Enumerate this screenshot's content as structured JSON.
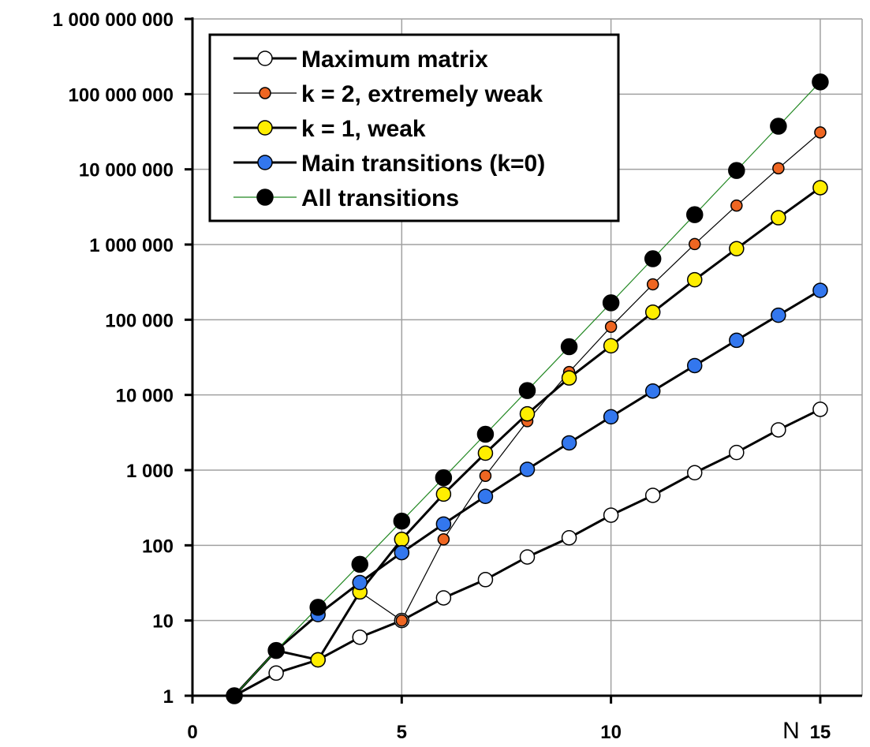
{
  "chart_data": {
    "type": "line",
    "xlabel": "N",
    "ylabel": "",
    "xlim": [
      0,
      16
    ],
    "ylim": [
      1,
      1000000000
    ],
    "yscale": "log",
    "grid": true,
    "legend_position": "top-left",
    "x_ticks": [
      "0",
      "5",
      "10",
      "15"
    ],
    "y_ticks": [
      "1",
      "10",
      "100",
      "1 000",
      "10 000",
      "100 000",
      "1 000 000",
      "10 000 000",
      "100 000 000",
      "1 000 000 000"
    ],
    "x_tick_values": [
      0,
      5,
      10,
      15
    ],
    "y_tick_values": [
      1,
      10,
      100,
      1000,
      10000,
      100000,
      1000000,
      10000000,
      100000000,
      1000000000
    ],
    "series": [
      {
        "name": "Maximum matrix",
        "marker_color": "#ffffff",
        "line_color": "#000000",
        "x": [
          1,
          2,
          3,
          4,
          5,
          6,
          7,
          8,
          9,
          10,
          11,
          12,
          13,
          14,
          15
        ],
        "values": [
          1,
          2,
          3,
          6,
          10,
          20,
          35,
          70,
          126,
          252,
          462,
          924,
          1716,
          3432,
          6435
        ]
      },
      {
        "name": "k = 2, extremely weak",
        "marker_color": "#ee6622",
        "line_color": "#000000",
        "x": [
          1,
          2,
          3,
          4,
          5,
          6,
          7,
          8,
          9,
          10,
          11,
          12,
          13,
          14,
          15
        ],
        "values": [
          1,
          4,
          3,
          24,
          10,
          120,
          840,
          4480,
          20160,
          80640,
          295680,
          1013760,
          3294720,
          10321920,
          30965760
        ]
      },
      {
        "name": "k = 1, weak",
        "marker_color": "#ffee00",
        "line_color": "#000000",
        "x": [
          1,
          2,
          3,
          4,
          5,
          6,
          7,
          8,
          9,
          10,
          11,
          12,
          13,
          14,
          15
        ],
        "values": [
          1,
          4,
          3,
          24,
          120,
          480,
          1680,
          5600,
          16800,
          45000,
          126000,
          340000,
          880000,
          2270000,
          5700000
        ]
      },
      {
        "name": "Main transitions (k=0)",
        "marker_color": "#3377ee",
        "line_color": "#000000",
        "x": [
          1,
          2,
          3,
          4,
          5,
          6,
          7,
          8,
          9,
          10,
          11,
          12,
          13,
          14,
          15
        ],
        "values": [
          1,
          4,
          12,
          32,
          80,
          192,
          448,
          1024,
          2304,
          5120,
          11264,
          24576,
          53248,
          114688,
          245760
        ]
      },
      {
        "name": "All transitions",
        "marker_color": "#000000",
        "line_color": "#228822",
        "x": [
          1,
          2,
          3,
          4,
          5,
          6,
          7,
          8,
          9,
          10,
          11,
          12,
          13,
          14,
          15
        ],
        "values": [
          1,
          4,
          15,
          56,
          210,
          792,
          3003,
          11440,
          43758,
          167960,
          646646,
          2496144,
          9657700,
          37442160,
          145422675
        ]
      }
    ]
  }
}
